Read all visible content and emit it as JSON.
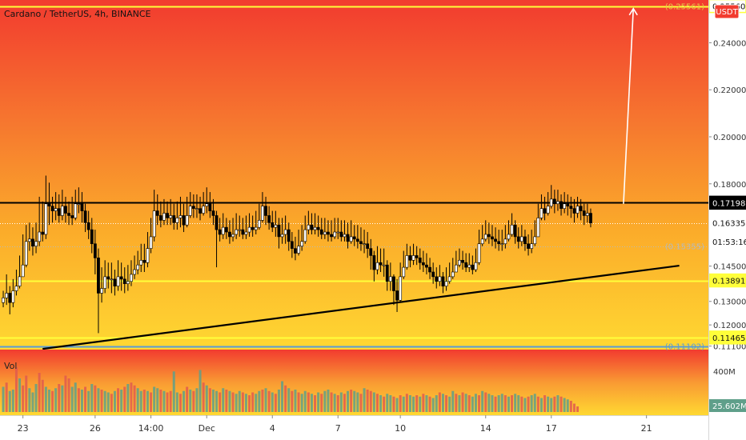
{
  "header": {
    "title": "Cardano / TetherUS, 4h, BINANCE",
    "currency_badge": "USDT"
  },
  "price_axis": {
    "ticks": [
      {
        "value": 0.24,
        "label": "0.24000"
      },
      {
        "value": 0.22,
        "label": "0.22000"
      },
      {
        "value": 0.2,
        "label": "0.20000"
      },
      {
        "value": 0.18,
        "label": "0.18000"
      },
      {
        "value": 0.1715,
        "label": "0.17150"
      },
      {
        "value": 0.145,
        "label": "0.14500"
      },
      {
        "value": 0.13,
        "label": "0.13000"
      },
      {
        "value": 0.12,
        "label": "0.12000"
      },
      {
        "value": 0.111,
        "label": "0.11100"
      }
    ],
    "badges": [
      {
        "value": 0.25561,
        "label": "(0.25561)",
        "style": "ghost",
        "color": "#e6c74a"
      },
      {
        "value": 0.2556,
        "label": "0.25560",
        "style": "outline",
        "color": "#ffff3a"
      },
      {
        "value": 0.17198,
        "label": "0.17198",
        "style": "solid",
        "color": "#000000"
      },
      {
        "value": 0.16335,
        "label": "0.16335",
        "style": "solid",
        "color": "#ffffff"
      },
      {
        "value": 0.15355,
        "label": "(0.15355)",
        "style": "ghost",
        "color": "#b9b9b9"
      },
      {
        "value": 0.1555,
        "label": "01:53:16",
        "style": "solid",
        "color": "#ffffff"
      },
      {
        "value": 0.13891,
        "label": "0.13891",
        "style": "solid",
        "color": "#ffff3a"
      },
      {
        "value": 0.11465,
        "label": "0.11465",
        "style": "solid",
        "color": "#ffff3a"
      },
      {
        "value": 0.11102,
        "label": "(0.11102)",
        "style": "ghost",
        "color": "#5b9bd5"
      }
    ]
  },
  "volume_pane": {
    "label": "Vol",
    "scale_label": "400M",
    "current_label": "25.602M",
    "colors": {
      "up": "#5f9f8a",
      "down": "#e15a4f"
    },
    "max": 400,
    "values": [
      180,
      210,
      150,
      160,
      320,
      240,
      190,
      260,
      170,
      140,
      200,
      280,
      230,
      180,
      160,
      150,
      170,
      200,
      190,
      260,
      240,
      180,
      210,
      170,
      160,
      180,
      150,
      200,
      190,
      170,
      160,
      150,
      140,
      130,
      150,
      170,
      160,
      180,
      200,
      210,
      190,
      170,
      150,
      160,
      150,
      140,
      180,
      170,
      160,
      150,
      140,
      150,
      290,
      140,
      130,
      150,
      180,
      160,
      150,
      170,
      300,
      210,
      190,
      170,
      160,
      150,
      140,
      170,
      160,
      150,
      140,
      130,
      150,
      140,
      130,
      120,
      140,
      130,
      150,
      160,
      170,
      150,
      140,
      130,
      160,
      220,
      190,
      170,
      150,
      160,
      140,
      130,
      150,
      140,
      130,
      120,
      140,
      130,
      150,
      160,
      140,
      130,
      120,
      140,
      130,
      150,
      160,
      150,
      140,
      130,
      170,
      160,
      150,
      140,
      130,
      120,
      110,
      130,
      120,
      110,
      100,
      120,
      110,
      130,
      120,
      110,
      120,
      110,
      130,
      120,
      110,
      100,
      120,
      140,
      130,
      120,
      110,
      150,
      130,
      120,
      140,
      130,
      120,
      110,
      130,
      120,
      150,
      140,
      130,
      120,
      110,
      120,
      130,
      120,
      110,
      120,
      130,
      120,
      110,
      100,
      110,
      120,
      130,
      110,
      100,
      120,
      110,
      100,
      110,
      120,
      110,
      100,
      90,
      80,
      60,
      40
    ],
    "up_flags": [
      1,
      0,
      1,
      1,
      0,
      1,
      0,
      0,
      1,
      1,
      1,
      0,
      0,
      1,
      1,
      0,
      1,
      0,
      1,
      0,
      0,
      1,
      1,
      0,
      1,
      0,
      1,
      1,
      0,
      1,
      0,
      1,
      1,
      0,
      1,
      0,
      1,
      0,
      1,
      0,
      0,
      1,
      1,
      0,
      1,
      0,
      1,
      1,
      0,
      1,
      0,
      0,
      1,
      1,
      0,
      1,
      0,
      1,
      0,
      1,
      1,
      0,
      1,
      0,
      1,
      1,
      0,
      1,
      0,
      1,
      0,
      1,
      1,
      0,
      1,
      0,
      0,
      1,
      1,
      0,
      1,
      0,
      1,
      0,
      1,
      1,
      0,
      1,
      0,
      1,
      0,
      1,
      1,
      0,
      1,
      0,
      1,
      0,
      1,
      1,
      0,
      1,
      0,
      1,
      0,
      1,
      0,
      1,
      1,
      0,
      1,
      0,
      0,
      1,
      0,
      1,
      0,
      1,
      1,
      0,
      1,
      0,
      1,
      0,
      1,
      1,
      0,
      1,
      0,
      1,
      0,
      1,
      1,
      0,
      1,
      0,
      1,
      1,
      0,
      1,
      0,
      1,
      0,
      1,
      1,
      0,
      1,
      0,
      1,
      1,
      0,
      1,
      1,
      0,
      1,
      0,
      1,
      1,
      0,
      1,
      0,
      1,
      1,
      0,
      1,
      0,
      1,
      1,
      0,
      1,
      0,
      1,
      1
    ]
  },
  "time_axis": {
    "ticks": [
      {
        "bar": 6,
        "label": "23"
      },
      {
        "bar": 28,
        "label": "26"
      },
      {
        "bar": 45,
        "label": "14:00"
      },
      {
        "bar": 62,
        "label": "Dec"
      },
      {
        "bar": 82,
        "label": "4"
      },
      {
        "bar": 102,
        "label": "7"
      },
      {
        "bar": 121,
        "label": "10"
      },
      {
        "bar": 147,
        "label": "14"
      },
      {
        "bar": 167,
        "label": "17"
      },
      {
        "bar": 196,
        "label": "21"
      }
    ]
  },
  "chart_data": {
    "type": "candlestick",
    "symbol": "Cardano / TetherUS",
    "interval": "4h",
    "exchange": "BINANCE",
    "ylim": [
      0.1095,
      0.2575
    ],
    "series": {
      "close": [
        0.1315,
        0.1335,
        0.1295,
        0.1345,
        0.1365,
        0.1405,
        0.1455,
        0.1555,
        0.1565,
        0.1535,
        0.1555,
        0.1595,
        0.1585,
        0.1715,
        0.1705,
        0.1685,
        0.1695,
        0.1665,
        0.1705,
        0.1675,
        0.1665,
        0.1655,
        0.1715,
        0.1715,
        0.1685,
        0.1635,
        0.1605,
        0.1545,
        0.1485,
        0.1335,
        0.1355,
        0.1405,
        0.1395,
        0.1395,
        0.1365,
        0.1405,
        0.1395,
        0.1375,
        0.1385,
        0.1415,
        0.1435,
        0.1455,
        0.1475,
        0.1465,
        0.1525,
        0.1575,
        0.1685,
        0.1665,
        0.1645,
        0.1675,
        0.1655,
        0.1665,
        0.1635,
        0.1655,
        0.1665,
        0.1625,
        0.1665,
        0.1705,
        0.1695,
        0.1695,
        0.1675,
        0.1705,
        0.1715,
        0.1685,
        0.1665,
        0.1605,
        0.1585,
        0.1615,
        0.1595,
        0.1575,
        0.1585,
        0.1605,
        0.1605,
        0.1585,
        0.1595,
        0.1615,
        0.1605,
        0.1615,
        0.1645,
        0.1705,
        0.1665,
        0.1635,
        0.1615,
        0.1625,
        0.1575,
        0.1585,
        0.1605,
        0.1555,
        0.1525,
        0.1505,
        0.1535,
        0.1555,
        0.1605,
        0.1625,
        0.1605,
        0.1615,
        0.1605,
        0.1585,
        0.1595,
        0.1585,
        0.1575,
        0.1595,
        0.1595,
        0.1575,
        0.1585,
        0.1555,
        0.1575,
        0.1565,
        0.1555,
        0.1545,
        0.1545,
        0.1525,
        0.1495,
        0.1435,
        0.1465,
        0.1455,
        0.1455,
        0.1385,
        0.1405,
        0.1345,
        0.1305,
        0.1405,
        0.1445,
        0.1495,
        0.1475,
        0.1495,
        0.1485,
        0.1465,
        0.1455,
        0.1445,
        0.1425,
        0.1405,
        0.1385,
        0.1405,
        0.1365,
        0.1385,
        0.1405,
        0.1425,
        0.1455,
        0.1475,
        0.1465,
        0.1445,
        0.1455,
        0.1435,
        0.1465,
        0.1545,
        0.1565,
        0.1585,
        0.1575,
        0.1565,
        0.1555,
        0.1545,
        0.1545,
        0.1565,
        0.1585,
        0.1625,
        0.1575,
        0.1555,
        0.1575,
        0.1545,
        0.1525,
        0.1545,
        0.1575,
        0.1655,
        0.1695,
        0.1675,
        0.1705,
        0.1735,
        0.1715,
        0.1725,
        0.1695,
        0.1715,
        0.1705,
        0.1695,
        0.1675,
        0.1705,
        0.1685,
        0.1665,
        0.1675,
        0.16335
      ],
      "high": [
        0.1345,
        0.1415,
        0.1365,
        0.1395,
        0.1435,
        0.1495,
        0.1585,
        0.1625,
        0.1635,
        0.1615,
        0.1635,
        0.1745,
        0.1725,
        0.1835,
        0.1805,
        0.1745,
        0.1765,
        0.1755,
        0.1775,
        0.1745,
        0.1725,
        0.1745,
        0.1775,
        0.1785,
        0.1765,
        0.1715,
        0.1685,
        0.1655,
        0.1605,
        0.1525,
        0.1445,
        0.1475,
        0.1465,
        0.1465,
        0.1435,
        0.1475,
        0.1465,
        0.1445,
        0.1455,
        0.1475,
        0.1495,
        0.1515,
        0.1545,
        0.1545,
        0.1595,
        0.1655,
        0.1775,
        0.1755,
        0.1725,
        0.1735,
        0.1725,
        0.1735,
        0.1715,
        0.1725,
        0.1745,
        0.1715,
        0.1745,
        0.1765,
        0.1755,
        0.1755,
        0.1745,
        0.1765,
        0.1785,
        0.1765,
        0.1735,
        0.1685,
        0.1655,
        0.1675,
        0.1655,
        0.1645,
        0.1655,
        0.1675,
        0.1665,
        0.1655,
        0.1665,
        0.1675,
        0.1665,
        0.1685,
        0.1715,
        0.1765,
        0.1745,
        0.1705,
        0.1685,
        0.1685,
        0.1655,
        0.1655,
        0.1665,
        0.1635,
        0.1595,
        0.1575,
        0.1605,
        0.1625,
        0.1665,
        0.1685,
        0.1675,
        0.1675,
        0.1665,
        0.1655,
        0.1655,
        0.1645,
        0.1645,
        0.1655,
        0.1655,
        0.1645,
        0.1645,
        0.1635,
        0.1645,
        0.1625,
        0.1625,
        0.1615,
        0.1605,
        0.1595,
        0.1565,
        0.1515,
        0.1535,
        0.1525,
        0.1525,
        0.1475,
        0.1465,
        0.1415,
        0.1395,
        0.1465,
        0.1515,
        0.1545,
        0.1535,
        0.1545,
        0.1535,
        0.1525,
        0.1515,
        0.1505,
        0.1485,
        0.1465,
        0.1445,
        0.1455,
        0.1425,
        0.1445,
        0.1465,
        0.1485,
        0.1515,
        0.1525,
        0.1515,
        0.1505,
        0.1505,
        0.1495,
        0.1525,
        0.1605,
        0.1625,
        0.1645,
        0.1635,
        0.1625,
        0.1615,
        0.1605,
        0.1605,
        0.1625,
        0.1645,
        0.1675,
        0.1645,
        0.1615,
        0.1625,
        0.1605,
        0.1585,
        0.1605,
        0.1645,
        0.1715,
        0.1755,
        0.1745,
        0.1765,
        0.1795,
        0.1775,
        0.1775,
        0.1755,
        0.1765,
        0.1755,
        0.1745,
        0.1735,
        0.1745,
        0.1735,
        0.1715,
        0.1715,
        0.1695
      ],
      "low": [
        0.1275,
        0.1285,
        0.1245,
        0.1275,
        0.1325,
        0.1355,
        0.1405,
        0.1445,
        0.1515,
        0.1495,
        0.1505,
        0.1535,
        0.1555,
        0.1565,
        0.1625,
        0.1635,
        0.1645,
        0.1635,
        0.1645,
        0.1635,
        0.1625,
        0.1625,
        0.1645,
        0.1675,
        0.1635,
        0.1595,
        0.1565,
        0.1505,
        0.1415,
        0.1165,
        0.1295,
        0.1335,
        0.1355,
        0.1335,
        0.1325,
        0.1345,
        0.1345,
        0.1335,
        0.1345,
        0.1365,
        0.1395,
        0.1415,
        0.1425,
        0.1425,
        0.1445,
        0.1505,
        0.1555,
        0.1625,
        0.1615,
        0.1625,
        0.1625,
        0.1625,
        0.1605,
        0.1605,
        0.1615,
        0.1595,
        0.1615,
        0.1655,
        0.1655,
        0.1655,
        0.1645,
        0.1665,
        0.1675,
        0.1655,
        0.1625,
        0.1445,
        0.1555,
        0.1565,
        0.1565,
        0.1545,
        0.1555,
        0.1565,
        0.1575,
        0.1565,
        0.1565,
        0.1575,
        0.1575,
        0.1585,
        0.1605,
        0.1635,
        0.1625,
        0.1605,
        0.1595,
        0.1575,
        0.1525,
        0.1545,
        0.1545,
        0.1515,
        0.1485,
        0.1475,
        0.1495,
        0.1515,
        0.1545,
        0.1585,
        0.1585,
        0.1585,
        0.1575,
        0.1565,
        0.1565,
        0.1555,
        0.1555,
        0.1565,
        0.1565,
        0.1555,
        0.1555,
        0.1525,
        0.1545,
        0.1535,
        0.1525,
        0.1515,
        0.1505,
        0.1485,
        0.1435,
        0.1385,
        0.1415,
        0.1425,
        0.1405,
        0.1345,
        0.1345,
        0.1285,
        0.1255,
        0.1295,
        0.1395,
        0.1435,
        0.1445,
        0.1455,
        0.1455,
        0.1435,
        0.1425,
        0.1415,
        0.1395,
        0.1375,
        0.1355,
        0.1365,
        0.1335,
        0.1345,
        0.1375,
        0.1395,
        0.1425,
        0.1445,
        0.1435,
        0.1425,
        0.1425,
        0.1415,
        0.1425,
        0.1455,
        0.1535,
        0.1555,
        0.1545,
        0.1535,
        0.1525,
        0.1515,
        0.1515,
        0.1525,
        0.1555,
        0.1575,
        0.1545,
        0.1525,
        0.1535,
        0.1515,
        0.1495,
        0.1505,
        0.1535,
        0.1575,
        0.1645,
        0.1645,
        0.1665,
        0.1695,
        0.1675,
        0.1685,
        0.1665,
        0.1675,
        0.1665,
        0.1655,
        0.1635,
        0.1655,
        0.1645,
        0.1625,
        0.1635,
        0.1615
      ]
    },
    "horizontal_lines": [
      {
        "value": 0.2556,
        "color": "#ffff3a",
        "width": 2
      },
      {
        "value": 0.17198,
        "color": "#000000",
        "width": 2
      },
      {
        "value": 0.16335,
        "color": "#ffffff",
        "width": 1,
        "dash": true
      },
      {
        "value": 0.15355,
        "color": "#b9b9b9",
        "width": 1,
        "dash": true
      },
      {
        "value": 0.13891,
        "color": "#ffff3a",
        "width": 2
      },
      {
        "value": 0.11465,
        "color": "#ffff3a",
        "width": 2
      },
      {
        "value": 0.11102,
        "color": "#5b9bd5",
        "width": 2
      }
    ],
    "trendline": {
      "from": {
        "bar": 12,
        "value": 0.1098
      },
      "to": {
        "bar": 206,
        "value": 0.1452
      }
    },
    "projection_arrow": {
      "from": {
        "bar": 189,
        "value": 0.1715
      },
      "to": {
        "bar": 192,
        "value": 0.2545
      }
    },
    "grid": false,
    "colors": {
      "up": "#ffffff",
      "down": "#000000",
      "background_top": "#f23b2f",
      "background_bottom": "#ffd832"
    }
  }
}
